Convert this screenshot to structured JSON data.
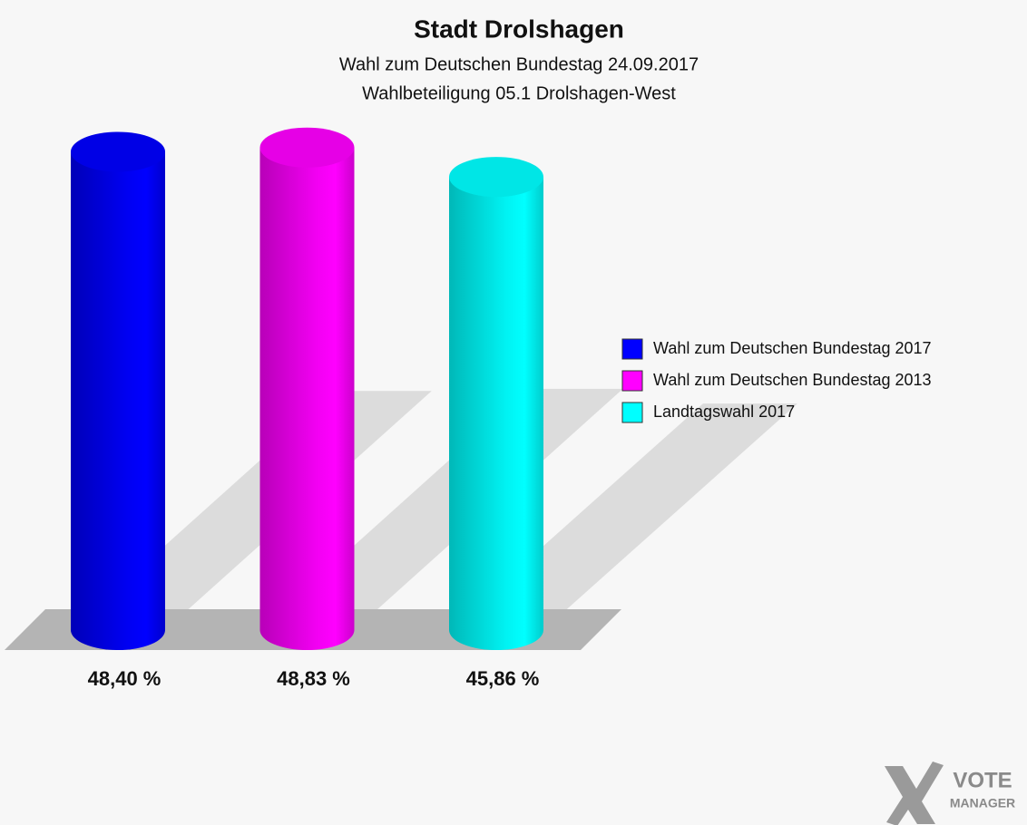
{
  "chart_data": {
    "type": "bar",
    "title": "Stadt Drolshagen",
    "subtitles": [
      "Wahl zum Deutschen Bundestag 24.09.2017",
      "Wahlbeteiligung 05.1 Drolshagen-West"
    ],
    "categories": [
      "Wahl zum Deutschen Bundestag 2017",
      "Wahl zum Deutschen Bundestag 2013",
      "Landtagswahl 2017"
    ],
    "values": [
      48.4,
      48.83,
      45.86
    ],
    "value_labels": [
      "48,40 %",
      "48,83 %",
      "45,86 %"
    ],
    "colors": [
      "#0000ff",
      "#ff00ff",
      "#00ffff"
    ],
    "watermark": [
      "VOTE",
      "MANAGER"
    ]
  }
}
